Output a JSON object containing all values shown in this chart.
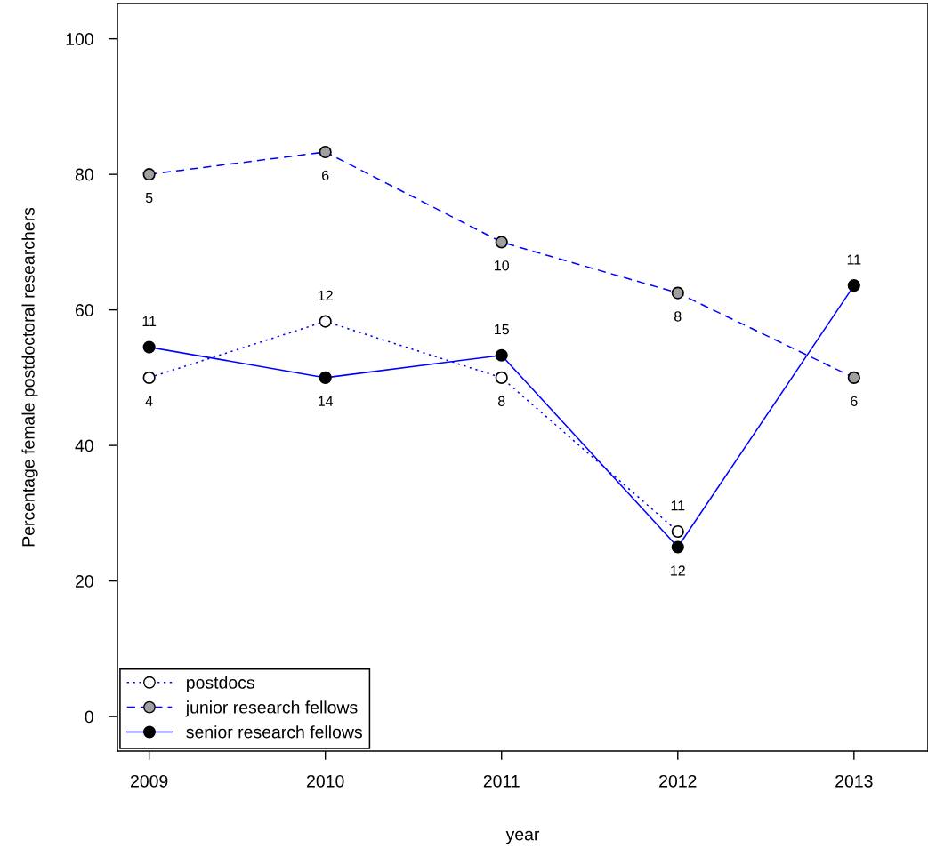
{
  "chart_data": {
    "type": "line",
    "xlabel": "year",
    "ylabel": "Percentage female postdoctoral researchers",
    "x": [
      2009,
      2010,
      2011,
      2012,
      2013
    ],
    "xlim": [
      2008.82,
      2013.42
    ],
    "xticks": [
      2009,
      2010,
      2011,
      2012,
      2013
    ],
    "ylim": [
      -5.1,
      105.2
    ],
    "yticks": [
      0,
      20,
      40,
      60,
      80,
      100
    ],
    "grid": false,
    "legend": "bottom left",
    "marker": "circle",
    "series": [
      {
        "name": "postdocs",
        "color": "#0000ff",
        "line_style": "dotted",
        "colors": [
          "#ffffff",
          "#ffffff",
          "#ffffff",
          "#ffffff",
          "#ffffff"
        ],
        "values": [
          50,
          58.3,
          50,
          27.3,
          null
        ]
      },
      {
        "name": "junior research fellows",
        "color": "#0000ff",
        "line_style": "dashed",
        "colors": [
          "#a0a0a0",
          "#a0a0a0",
          "#a0a0a0",
          "#a0a0a0",
          "#a0a0a0"
        ],
        "values": [
          80,
          83.3,
          70,
          62.5,
          50
        ]
      },
      {
        "name": "senior research fellows",
        "color": "#0000ff",
        "line_style": "solid",
        "colors": [
          "#000000",
          "#000000",
          "#000000",
          "#000000",
          "#000000"
        ],
        "values": [
          54.5,
          50,
          53.3,
          25,
          63.6
        ]
      }
    ],
    "annotations": [
      {
        "text": "4",
        "x": 2009,
        "y": 50
      },
      {
        "text": "12",
        "x": 2010,
        "y": 58.3
      },
      {
        "text": "8",
        "x": 2011,
        "y": 50
      },
      {
        "text": "11",
        "x": 2012,
        "y": 27.3
      },
      {
        "text": "5",
        "x": 2009,
        "y": 80
      },
      {
        "text": "6",
        "x": 2010,
        "y": 83.3
      },
      {
        "text": "10",
        "x": 2011,
        "y": 70
      },
      {
        "text": "8",
        "x": 2012,
        "y": 62.5
      },
      {
        "text": "6",
        "x": 2013,
        "y": 50
      },
      {
        "text": "11",
        "x": 2009,
        "y": 54.5
      },
      {
        "text": "14",
        "x": 2010,
        "y": 50
      },
      {
        "text": "15",
        "x": 2011,
        "y": 53.3
      },
      {
        "text": "12",
        "x": 2012,
        "y": 25
      },
      {
        "text": "11",
        "x": 2013,
        "y": 63.6
      }
    ]
  }
}
